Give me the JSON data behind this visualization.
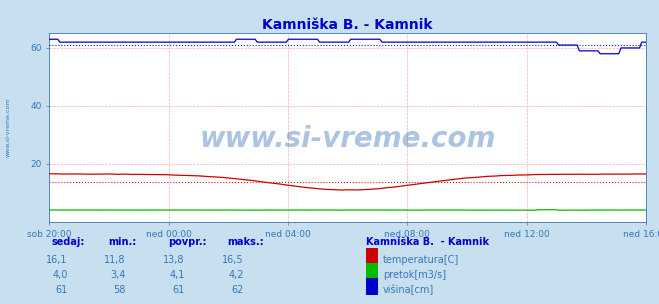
{
  "title": "Kamniška B. - Kamnik",
  "bg_color": "#c8dff0",
  "plot_bg_color": "#ffffff",
  "grid_color": "#ffaaaa",
  "x_labels": [
    "sob 20:00",
    "ned 00:00",
    "ned 04:00",
    "ned 08:00",
    "ned 12:00",
    "ned 16:00"
  ],
  "x_ticks": [
    0,
    72,
    144,
    216,
    288,
    360
  ],
  "x_total": 360,
  "ylim": [
    0,
    65
  ],
  "yticks": [
    20,
    40,
    60
  ],
  "temp_color": "#cc0000",
  "flow_color": "#00bb00",
  "height_color": "#0000cc",
  "temp_avg": 13.8,
  "flow_avg": 4.1,
  "height_avg": 61,
  "watermark": "www.si-vreme.com",
  "watermark_color": "#1155aa",
  "watermark_alpha": 0.35,
  "left_label": "www.si-vreme.com",
  "legend_title": "Kamniška B.  - Kamnik",
  "legend_items": [
    {
      "label": "temperatura[C]",
      "color": "#cc0000"
    },
    {
      "label": "pretok[m3/s]",
      "color": "#00bb00"
    },
    {
      "label": "višina[cm]",
      "color": "#0000cc"
    }
  ],
  "table_headers": [
    "sedaj:",
    "min.:",
    "povpr.:",
    "maks.:"
  ],
  "table_data": [
    [
      "16,1",
      "11,8",
      "13,8",
      "16,5"
    ],
    [
      "4,0",
      "3,4",
      "4,1",
      "4,2"
    ],
    [
      "61",
      "58",
      "61",
      "62"
    ]
  ],
  "title_color": "#0000cc",
  "axis_color": "#3377bb",
  "tick_color": "#3377bb",
  "header_color": "#0000cc"
}
